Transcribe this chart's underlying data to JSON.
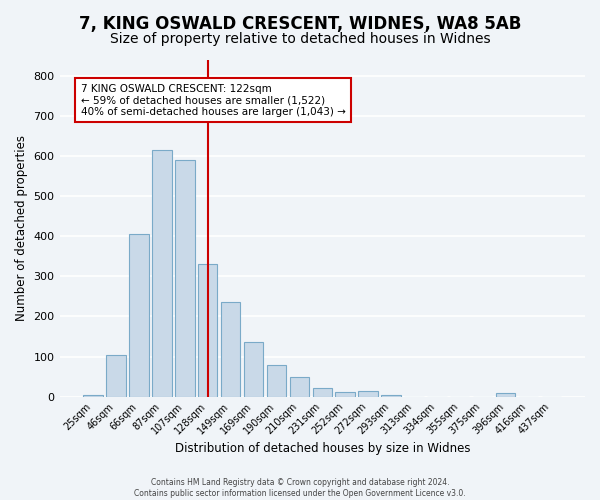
{
  "title1": "7, KING OSWALD CRESCENT, WIDNES, WA8 5AB",
  "title2": "Size of property relative to detached houses in Widnes",
  "xlabel": "Distribution of detached houses by size in Widnes",
  "ylabel": "Number of detached properties",
  "bin_labels": [
    "25sqm",
    "46sqm",
    "66sqm",
    "87sqm",
    "107sqm",
    "128sqm",
    "149sqm",
    "169sqm",
    "190sqm",
    "210sqm",
    "231sqm",
    "252sqm",
    "272sqm",
    "293sqm",
    "313sqm",
    "334sqm",
    "355sqm",
    "375sqm",
    "396sqm",
    "416sqm",
    "437sqm"
  ],
  "bar_heights": [
    5,
    105,
    405,
    615,
    590,
    330,
    235,
    135,
    78,
    50,
    22,
    12,
    15,
    5,
    0,
    0,
    0,
    0,
    8,
    0,
    0
  ],
  "bar_color": "#c9d9e8",
  "bar_edgecolor": "#7aaac8",
  "vline_x": 5,
  "vline_color": "#cc0000",
  "annotation_title": "7 KING OSWALD CRESCENT: 122sqm",
  "annotation_line1": "← 59% of detached houses are smaller (1,522)",
  "annotation_line2": "40% of semi-detached houses are larger (1,043) →",
  "annotation_box_color": "#ffffff",
  "annotation_box_edgecolor": "#cc0000",
  "footer1": "Contains HM Land Registry data © Crown copyright and database right 2024.",
  "footer2": "Contains public sector information licensed under the Open Government Licence v3.0.",
  "ylim": [
    0,
    840
  ],
  "background_color": "#f0f4f8",
  "grid_color": "#ffffff",
  "title1_fontsize": 12,
  "title2_fontsize": 10
}
